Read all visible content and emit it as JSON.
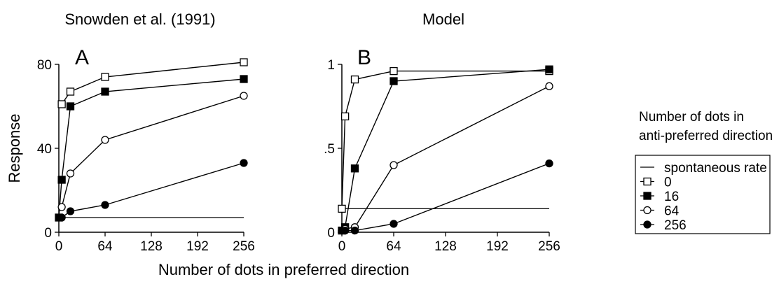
{
  "chart_data": [
    {
      "type": "line",
      "panel_label": "A",
      "title": "Snowden et al. (1991)",
      "xlabel": "Number of dots in preferred direction",
      "ylabel": "Response",
      "xlim": [
        0,
        256
      ],
      "ylim": [
        0,
        80
      ],
      "xticks": [
        0,
        64,
        128,
        192,
        256
      ],
      "xtick_labels": [
        "0",
        "64",
        "128",
        "192",
        "256"
      ],
      "yticks": [
        0,
        40,
        80
      ],
      "ytick_labels": [
        "0",
        "40",
        "80"
      ],
      "grid": false,
      "reference_line": {
        "name": "spontaneous rate",
        "y": 7
      },
      "series": [
        {
          "name": "0",
          "marker": "open-square",
          "x": [
            4,
            16,
            64,
            256
          ],
          "y": [
            61,
            67,
            74,
            81
          ]
        },
        {
          "name": "16",
          "marker": "filled-square",
          "x": [
            0,
            4,
            16,
            64,
            256
          ],
          "y": [
            7,
            25,
            60,
            67,
            73
          ]
        },
        {
          "name": "64",
          "marker": "open-circle",
          "x": [
            4,
            16,
            64,
            256
          ],
          "y": [
            12,
            28,
            44,
            65
          ]
        },
        {
          "name": "256",
          "marker": "filled-circle",
          "x": [
            4,
            16,
            64,
            256
          ],
          "y": [
            7,
            10,
            13,
            33
          ]
        }
      ]
    },
    {
      "type": "line",
      "panel_label": "B",
      "title": "Model",
      "xlabel": "Number of dots in preferred direction",
      "ylabel": "",
      "xlim": [
        0,
        256
      ],
      "ylim": [
        0,
        1
      ],
      "xticks": [
        0,
        64,
        128,
        192,
        256
      ],
      "xtick_labels": [
        "0",
        "64",
        "128",
        "192",
        "256"
      ],
      "yticks": [
        0,
        0.5,
        1
      ],
      "ytick_labels": [
        "0",
        ".5",
        "1"
      ],
      "grid": false,
      "reference_line": {
        "name": "spontaneous rate",
        "y": 0.14
      },
      "series": [
        {
          "name": "0",
          "marker": "open-square",
          "x": [
            0,
            4,
            16,
            64,
            256
          ],
          "y": [
            0.14,
            0.69,
            0.91,
            0.96,
            0.96
          ]
        },
        {
          "name": "16",
          "marker": "filled-square",
          "x": [
            0,
            4,
            16,
            64,
            256
          ],
          "y": [
            0.01,
            0.03,
            0.38,
            0.9,
            0.97
          ]
        },
        {
          "name": "64",
          "marker": "open-circle",
          "x": [
            0,
            4,
            16,
            64,
            256
          ],
          "y": [
            0.01,
            0.02,
            0.03,
            0.4,
            0.87
          ]
        },
        {
          "name": "256",
          "marker": "filled-circle",
          "x": [
            0,
            4,
            16,
            64,
            256
          ],
          "y": [
            0.01,
            0.01,
            0.01,
            0.05,
            0.41
          ]
        }
      ]
    }
  ],
  "shared_xlabel": "Number of dots in preferred direction",
  "legend": {
    "title_line1": "Number of dots in",
    "title_line2": "anti-preferred direction",
    "placement": "right",
    "items": [
      {
        "marker": "line",
        "label": "spontaneous rate"
      },
      {
        "marker": "open-square",
        "label": "0"
      },
      {
        "marker": "filled-square",
        "label": "16"
      },
      {
        "marker": "open-circle",
        "label": "64"
      },
      {
        "marker": "filled-circle",
        "label": "256"
      }
    ]
  },
  "colors": {
    "ink": "#000000",
    "background": "#ffffff"
  }
}
